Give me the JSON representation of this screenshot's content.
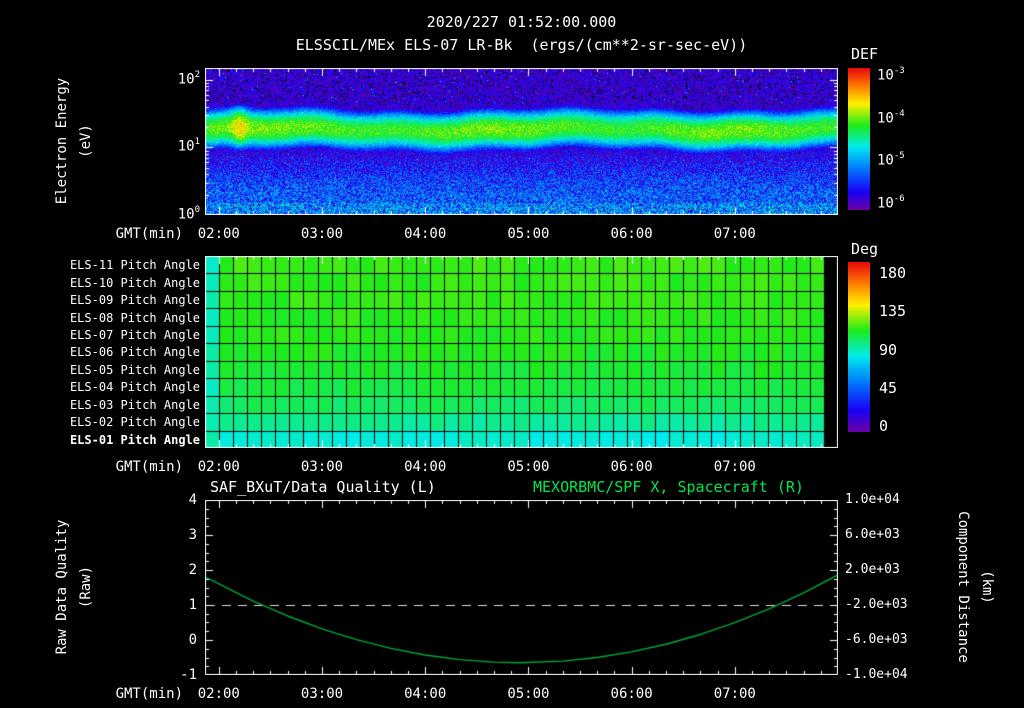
{
  "header": {
    "timestamp": "2020/227 01:52:00.000",
    "instrument_title": "ELSSCIL/MEx ELS-07 LR-Bk",
    "units_label": "(ergs/(cm**2-sr-sec-eV))"
  },
  "time_axis": {
    "label": "GMT(min)",
    "ticks": [
      "02:00",
      "03:00",
      "04:00",
      "05:00",
      "06:00",
      "07:00"
    ],
    "domain_gmt": [
      "01:52",
      "08:00"
    ]
  },
  "spectrogram": {
    "ylabel_line1": "Electron Energy",
    "ylabel_line2": "(eV)",
    "yticks": [
      {
        "base": "10",
        "exp": "2"
      },
      {
        "base": "10",
        "exp": "1"
      },
      {
        "base": "10",
        "exp": "0"
      }
    ],
    "colorbar": {
      "title": "DEF",
      "ticks": [
        {
          "base": "10",
          "exp": "-3"
        },
        {
          "base": "10",
          "exp": "-4"
        },
        {
          "base": "10",
          "exp": "-5"
        },
        {
          "base": "10",
          "exp": "-6"
        }
      ]
    }
  },
  "pitch_panel": {
    "rows": [
      "ELS-11 Pitch Angle",
      "ELS-10 Pitch Angle",
      "ELS-09 Pitch Angle",
      "ELS-08 Pitch Angle",
      "ELS-07 Pitch Angle",
      "ELS-06 Pitch Angle",
      "ELS-05 Pitch Angle",
      "ELS-04 Pitch Angle",
      "ELS-03 Pitch Angle",
      "ELS-02 Pitch Angle",
      "ELS-01 Pitch Angle"
    ],
    "colorbar": {
      "title": "Deg",
      "ticks": [
        "180",
        "135",
        "90",
        "45",
        "0"
      ]
    }
  },
  "bottom_plot": {
    "left_title": "SAF_BXuT/Data Quality (L)",
    "right_title": "MEXORBMC/SPF X, Spacecraft (R)",
    "left_ylabel_line1": "Raw Data Quality",
    "left_ylabel_line2": "(Raw)",
    "right_ylabel_line1": "Component Distance",
    "right_ylabel_line2": "(km)",
    "left_yticks": [
      "4",
      "3",
      "2",
      "1",
      "0",
      "-1"
    ],
    "right_yticks": [
      "1.0e+04",
      "6.0e+03",
      "2.0e+03",
      "-2.0e+03",
      "-6.0e+03",
      "-1.0e+04"
    ]
  },
  "colors": {
    "background": "#000000",
    "frame": "#ffffff",
    "text": "#ffffff",
    "right_title_green": "#00e64d",
    "curve_green": "#00ab38",
    "quality_dash": "#e0e0e0"
  },
  "chart_data": [
    {
      "type": "heatmap",
      "name": "electron-energy-spectrogram",
      "title": "ELSSCIL/MEx ELS-07 LR-Bk",
      "value_units": "ergs/(cm**2-sr-sec-eV)",
      "x_domain_gmt": [
        "01:52",
        "08:00"
      ],
      "xticks": [
        "02:00",
        "03:00",
        "04:00",
        "05:00",
        "06:00",
        "07:00"
      ],
      "y_axis": {
        "label": "Electron Energy (eV)",
        "scale": "log",
        "range_ev": [
          1,
          150
        ]
      },
      "color_axis": {
        "label": "DEF",
        "scale": "log",
        "range": [
          1e-06,
          0.001
        ],
        "tick_exponents": [
          -3,
          -4,
          -5,
          -6
        ],
        "draw_range_log10": [
          -6.2,
          -2.95
        ]
      },
      "model": {
        "background_log10": -5.95,
        "low_energy_background_log10": -5.4,
        "noise_log10": 0.42,
        "band": {
          "center_log10_ev": 1.27,
          "sigma_log10": 0.26,
          "peak_log10": -4.15,
          "description": "persistent bright green flux band ~10-35 eV across all times"
        },
        "bottom_band": {
          "max_log10_ev": 0.18,
          "peak_log10": -4.8,
          "speckle_fraction": 0.3
        },
        "bright_patch": {
          "time_gmt": "02:12",
          "peak_log10": -3.7,
          "width_frac": 0.012,
          "description": "yellow flux enhancement near 20 eV shortly after start"
        }
      }
    },
    {
      "type": "heatmap",
      "name": "pitch-angle-panel",
      "rows_top_to_bottom": [
        "ELS-11",
        "ELS-10",
        "ELS-09",
        "ELS-08",
        "ELS-07",
        "ELS-06",
        "ELS-05",
        "ELS-04",
        "ELS-03",
        "ELS-02",
        "ELS-01"
      ],
      "row_mean_pitch_deg": [
        111,
        110,
        110,
        109,
        108,
        107,
        105,
        103,
        99,
        92,
        84
      ],
      "color_axis": {
        "label": "Deg",
        "range": [
          0,
          180
        ],
        "ticks": [
          180,
          135,
          90,
          45,
          0
        ]
      },
      "x_domain_gmt": [
        "01:52",
        "08:00"
      ],
      "n_time_cells": 44,
      "first_cell_pitch_deg": 88,
      "last_cell": "no data (black)",
      "cell_noise_deg": 3
    },
    {
      "type": "line",
      "name": "quality-and-spacecraft-distance",
      "x_domain_gmt": [
        "01:52",
        "08:00"
      ],
      "xticks": [
        "02:00",
        "03:00",
        "04:00",
        "05:00",
        "06:00",
        "07:00"
      ],
      "left_axis": {
        "title": "SAF_BXuT/Data Quality (L)",
        "label": "Raw Data Quality (Raw)",
        "range": [
          -1,
          4
        ],
        "ticks": [
          4,
          3,
          2,
          1,
          0,
          -1
        ]
      },
      "right_axis": {
        "title": "MEXORBMC/SPF X, Spacecraft (R)",
        "label": "Component Distance (km)",
        "range": [
          -10000,
          10000
        ],
        "ticks": [
          10000,
          6000,
          2000,
          -2000,
          -6000,
          -10000
        ]
      },
      "series": [
        {
          "name": "SAF_BXuT/Data Quality",
          "axis": "left",
          "style": "dashed",
          "color": "#e0e0e0",
          "constant_value": 1
        },
        {
          "name": "MEXORBMC/SPF X, Spacecraft",
          "axis": "right",
          "style": "solid",
          "color": "#00ab38",
          "x_gmt": [
            "01:52",
            "02:20",
            "02:40",
            "03:00",
            "03:20",
            "03:40",
            "04:00",
            "04:20",
            "04:40",
            "04:55",
            "05:20",
            "05:40",
            "06:00",
            "06:20",
            "06:40",
            "07:00",
            "07:20",
            "07:40",
            "08:00"
          ],
          "y_km": [
            1222,
            -1554,
            -3255,
            -4721,
            -5953,
            -6950,
            -7713,
            -8241,
            -8534,
            -8600,
            -8417,
            -8006,
            -7361,
            -6481,
            -5366,
            -4017,
            -2433,
            -615,
            1439
          ]
        }
      ]
    }
  ]
}
